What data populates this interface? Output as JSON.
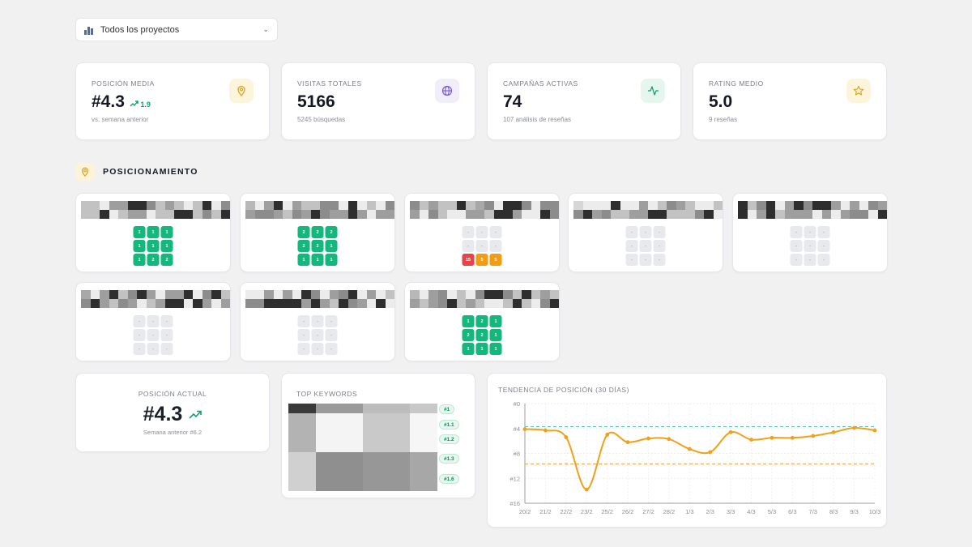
{
  "project_selector": {
    "label": "Todos los proyectos",
    "icon": "bar-chart-icon"
  },
  "kpis": [
    {
      "title": "POSICIÓN MEDIA",
      "value": "#4.3",
      "delta": "1.9",
      "subtitle": "vs. semana anterior",
      "icon": "map-pin-icon",
      "color": "#e0a11b",
      "bg": "#fdf4dc"
    },
    {
      "title": "VISITAS TOTALES",
      "value": "5166",
      "subtitle": "5245 búsquedas",
      "icon": "globe-icon",
      "color": "#7a5ad6",
      "bg": "#f1edfb"
    },
    {
      "title": "CAMPAÑAS ACTIVAS",
      "value": "74",
      "subtitle": "107 análisis de reseñas",
      "icon": "activity-icon",
      "color": "#12a06b",
      "bg": "#e4f6ee"
    },
    {
      "title": "RATING MEDIO",
      "value": "5.0",
      "subtitle": "9 reseñas",
      "icon": "star-icon",
      "color": "#d9a21a",
      "bg": "#fdf4dc"
    }
  ],
  "section": {
    "title": "POSICIONAMIENTO",
    "icon": "map-pin-icon"
  },
  "grids": [
    {
      "cells": [
        [
          "1",
          "1",
          "1"
        ],
        [
          "1",
          "1",
          "1"
        ],
        [
          "1",
          "2",
          "2"
        ]
      ],
      "status": [
        [
          "g",
          "g",
          "g"
        ],
        [
          "g",
          "g",
          "g"
        ],
        [
          "g",
          "g",
          "g"
        ]
      ]
    },
    {
      "cells": [
        [
          "2",
          "2",
          "2"
        ],
        [
          "2",
          "2",
          "1"
        ],
        [
          "1",
          "1",
          "1"
        ]
      ],
      "status": [
        [
          "g",
          "g",
          "g"
        ],
        [
          "g",
          "g",
          "g"
        ],
        [
          "g",
          "g",
          "g"
        ]
      ]
    },
    {
      "cells": [
        [
          "-",
          "-",
          "-"
        ],
        [
          "-",
          "-",
          "-"
        ],
        [
          "15",
          "5",
          "5"
        ]
      ],
      "status": [
        [
          "e",
          "e",
          "e"
        ],
        [
          "e",
          "e",
          "e"
        ],
        [
          "r",
          "o",
          "o"
        ]
      ]
    },
    {
      "cells": [
        [
          "-",
          "-",
          "-"
        ],
        [
          "-",
          "-",
          "-"
        ],
        [
          "-",
          "-",
          "-"
        ]
      ],
      "status": [
        [
          "e",
          "e",
          "e"
        ],
        [
          "e",
          "e",
          "e"
        ],
        [
          "e",
          "e",
          "e"
        ]
      ]
    },
    {
      "cells": [
        [
          "-",
          "-",
          "-"
        ],
        [
          "-",
          "-",
          "-"
        ],
        [
          "-",
          "-",
          "-"
        ]
      ],
      "status": [
        [
          "e",
          "e",
          "e"
        ],
        [
          "e",
          "e",
          "e"
        ],
        [
          "e",
          "e",
          "e"
        ]
      ]
    },
    {
      "cells": [
        [
          "-",
          "-",
          "-"
        ],
        [
          "-",
          "-",
          "-"
        ],
        [
          "-",
          "-",
          "-"
        ]
      ],
      "status": [
        [
          "e",
          "e",
          "e"
        ],
        [
          "e",
          "e",
          "e"
        ],
        [
          "e",
          "e",
          "e"
        ]
      ]
    },
    {
      "cells": [
        [
          "-",
          "-",
          "-"
        ],
        [
          "-",
          "-",
          "-"
        ],
        [
          "-",
          "-",
          "-"
        ]
      ],
      "status": [
        [
          "e",
          "e",
          "e"
        ],
        [
          "e",
          "e",
          "e"
        ],
        [
          "e",
          "e",
          "e"
        ]
      ]
    },
    {
      "cells": [
        [
          "1",
          "2",
          "1"
        ],
        [
          "2",
          "2",
          "1"
        ],
        [
          "1",
          "1",
          "1"
        ]
      ],
      "status": [
        [
          "g",
          "g",
          "g"
        ],
        [
          "g",
          "g",
          "g"
        ],
        [
          "g",
          "g",
          "g"
        ]
      ]
    }
  ],
  "current_position": {
    "title": "POSICIÓN ACTUAL",
    "value": "#4.3",
    "subtitle": "Semana anterior #6.2",
    "icon": "trending-up-icon"
  },
  "top_keywords": {
    "title": "TOP KEYWORDS",
    "ranks": [
      "#1",
      "#1.1",
      "#1.2",
      "#1.3",
      "#1.6"
    ]
  },
  "chart_data": {
    "type": "line",
    "title": "TENDENCIA DE POSICIÓN (30 DÍAS)",
    "x": [
      "20/2",
      "21/2",
      "22/2",
      "23/2",
      "25/2",
      "26/2",
      "27/2",
      "28/2",
      "1/3",
      "2/3",
      "3/3",
      "4/3",
      "5/3",
      "6/3",
      "7/3",
      "8/3",
      "9/3",
      "10/3"
    ],
    "y": [
      4.1,
      4.3,
      5.4,
      13.8,
      5.0,
      6.2,
      5.6,
      5.7,
      7.3,
      7.8,
      4.6,
      5.8,
      5.5,
      5.5,
      5.2,
      4.6,
      3.9,
      4.3
    ],
    "ylim": [
      16,
      0
    ],
    "yticks": [
      "#0",
      "#4",
      "#8",
      "#12",
      "#16"
    ],
    "reference_lines": [
      3.7,
      9.7
    ],
    "series_color": "#f0a01a",
    "reference_colors": [
      "#5bc0be",
      "#f2a33a"
    ],
    "grid": true
  }
}
